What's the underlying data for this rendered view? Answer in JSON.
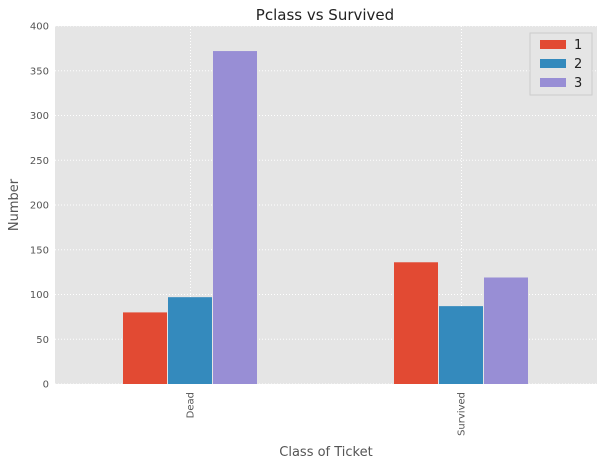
{
  "chart_data": {
    "type": "bar",
    "title": "Pclass vs Survived",
    "xlabel": "Class of Ticket",
    "ylabel": "Number",
    "categories": [
      "Dead",
      "Survived"
    ],
    "series": [
      {
        "name": "1",
        "values": [
          80,
          136
        ]
      },
      {
        "name": "2",
        "values": [
          97,
          87
        ]
      },
      {
        "name": "3",
        "values": [
          372,
          119
        ]
      }
    ],
    "ylim": [
      0,
      400
    ],
    "yticks": [
      0,
      50,
      100,
      150,
      200,
      250,
      300,
      350,
      400
    ],
    "grid": true,
    "legend_position": "top-right"
  },
  "colors": {
    "series": [
      "#e24a33",
      "#348abd",
      "#988ed5"
    ],
    "plot_background": "#e5e5e5"
  }
}
